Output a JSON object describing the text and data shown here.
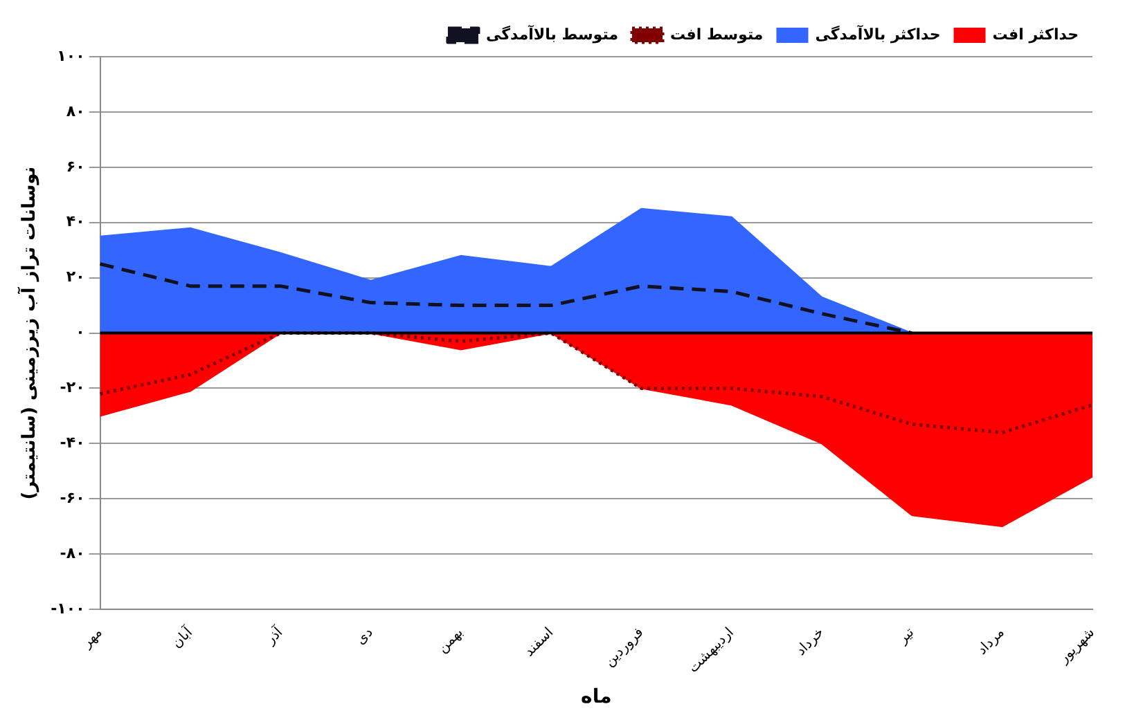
{
  "chart_data": {
    "type": "area",
    "xlabel": "ماه",
    "ylabel": "نوسانات تراز آب زیرزمینی (سانتیمتر)",
    "categories": [
      "مهر",
      "آبان",
      "آذر",
      "دی",
      "بهمن",
      "اسفند",
      "فروردین",
      "اردیبهشت",
      "خرداد",
      "تیر",
      "مرداد",
      "شهریور"
    ],
    "series": [
      {
        "name": "حداکثر بالاآمدگی",
        "color": "#3366ff",
        "values": [
          35,
          38,
          29,
          19,
          28,
          24,
          45,
          42,
          13,
          0,
          0,
          0
        ]
      },
      {
        "name": "حداکثر افت",
        "color": "#ff0000",
        "values": [
          -30,
          -21,
          0,
          0,
          -6,
          0,
          -20,
          -26,
          -40,
          -66,
          -70,
          -52
        ]
      },
      {
        "name": "متوسط بالاآمدگی",
        "type": "line",
        "line_style": "dashed",
        "color": "#111122",
        "values": [
          25,
          17,
          17,
          11,
          10,
          10,
          17,
          15,
          7,
          0,
          null,
          null
        ]
      },
      {
        "name": "متوسط افت",
        "type": "line",
        "line_style": "dotted",
        "color": "#800000",
        "values": [
          -22,
          -15,
          0,
          0,
          -3,
          0,
          -20,
          -20,
          -23,
          -33,
          -36,
          -26
        ]
      }
    ],
    "ylim": [
      -100,
      100
    ],
    "yticks": [
      {
        "value": -100,
        "label": "-۱۰۰"
      },
      {
        "value": -80,
        "label": "-۸۰"
      },
      {
        "value": -60,
        "label": "-۶۰"
      },
      {
        "value": -40,
        "label": "-۴۰"
      },
      {
        "value": -20,
        "label": "-۲۰"
      },
      {
        "value": 0,
        "label": "۰"
      },
      {
        "value": 20,
        "label": "۲۰"
      },
      {
        "value": 40,
        "label": "۴۰"
      },
      {
        "value": 60,
        "label": "۶۰"
      },
      {
        "value": 80,
        "label": "۸۰"
      },
      {
        "value": 100,
        "label": "۱۰۰"
      }
    ],
    "grid": "y",
    "legend": "top right",
    "marker": "none"
  }
}
